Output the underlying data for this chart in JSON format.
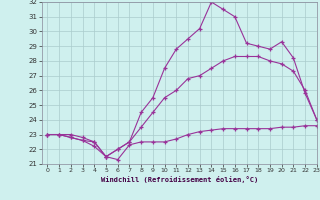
{
  "xlabel": "Windchill (Refroidissement éolien,°C)",
  "bg_color": "#cff0ee",
  "grid_color": "#aacccc",
  "line_color": "#993399",
  "xlim": [
    -0.5,
    23
  ],
  "ylim": [
    21,
    32
  ],
  "yticks": [
    21,
    22,
    23,
    24,
    25,
    26,
    27,
    28,
    29,
    30,
    31,
    32
  ],
  "xticks": [
    0,
    1,
    2,
    3,
    4,
    5,
    6,
    7,
    8,
    9,
    10,
    11,
    12,
    13,
    14,
    15,
    16,
    17,
    18,
    19,
    20,
    21,
    22,
    23
  ],
  "line1_x": [
    0,
    1,
    2,
    3,
    4,
    5,
    6,
    7,
    8,
    9,
    10,
    11,
    12,
    13,
    14,
    15,
    16,
    17,
    18,
    19,
    20,
    21,
    22,
    23
  ],
  "line1_y": [
    23.0,
    23.0,
    22.8,
    22.6,
    22.5,
    21.5,
    21.3,
    22.3,
    22.5,
    22.5,
    22.5,
    22.7,
    23.0,
    23.2,
    23.3,
    23.4,
    23.4,
    23.4,
    23.4,
    23.4,
    23.5,
    23.5,
    23.6,
    23.6
  ],
  "line2_x": [
    0,
    1,
    2,
    3,
    4,
    5,
    6,
    7,
    8,
    9,
    10,
    11,
    12,
    13,
    14,
    15,
    16,
    17,
    18,
    19,
    20,
    21,
    22,
    23
  ],
  "line2_y": [
    23.0,
    23.0,
    23.0,
    22.8,
    22.5,
    21.5,
    22.0,
    22.5,
    23.5,
    24.5,
    25.5,
    26.0,
    26.8,
    27.0,
    27.5,
    28.0,
    28.3,
    28.3,
    28.3,
    28.0,
    27.8,
    27.3,
    26.0,
    24.0
  ],
  "line3_x": [
    0,
    1,
    2,
    3,
    4,
    5,
    6,
    7,
    8,
    9,
    10,
    11,
    12,
    13,
    14,
    15,
    16,
    17,
    18,
    19,
    20,
    21,
    22,
    23
  ],
  "line3_y": [
    23.0,
    23.0,
    22.8,
    22.6,
    22.2,
    21.5,
    22.0,
    22.5,
    24.5,
    25.5,
    27.5,
    28.8,
    29.5,
    30.2,
    32.0,
    31.5,
    31.0,
    29.2,
    29.0,
    28.8,
    29.3,
    28.2,
    25.8,
    24.0
  ]
}
